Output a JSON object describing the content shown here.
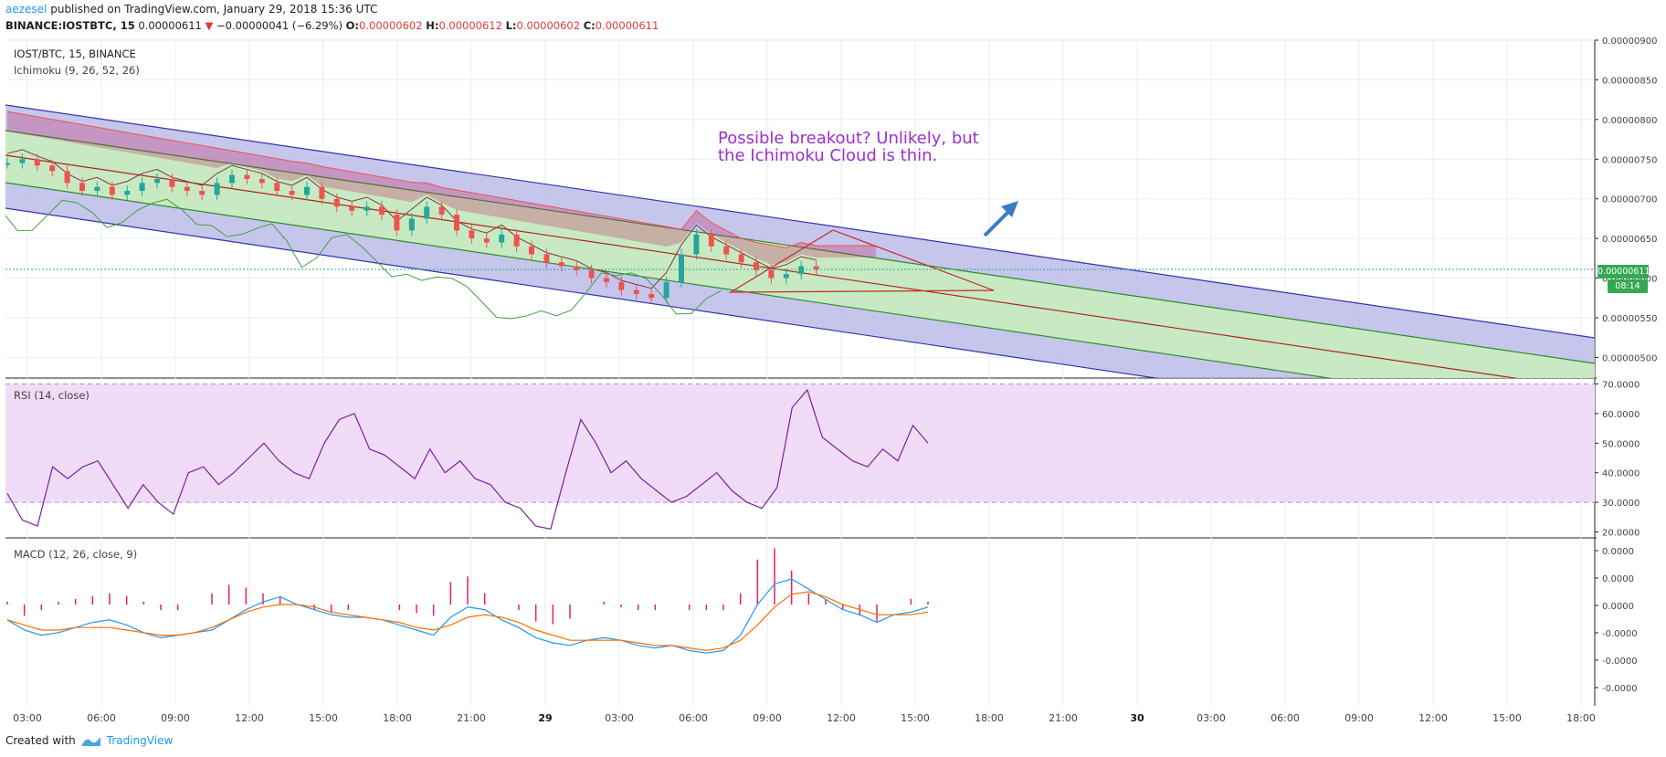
{
  "header": {
    "author": "aezesel",
    "published": "published on TradingView.com, January 29, 2018 15:36 UTC",
    "symbol": "BINANCE:IOSTBTC, 15",
    "last": "0.00000611",
    "change_arrow": "▼",
    "change": "−0.00000041 (−6.29%)",
    "o_label": "O:",
    "o_val": "0.00000602",
    "h_label": "H:",
    "h_val": "0.00000612",
    "l_label": "L:",
    "l_val": "0.00000602",
    "c_label": "C:",
    "c_val": "0.00000611"
  },
  "main_pane": {
    "title": "IOST/BTC, 15, BINANCE",
    "indicator": "Ichimoku (9, 26, 52, 26)",
    "annotation_line1": "Possible breakout? Unlikely, but",
    "annotation_line2": "the Ichimoku Cloud is thin.",
    "price_badge": "0.00000611",
    "time_badge": "08:14"
  },
  "rsi_pane": {
    "title": "RSI (14, close)"
  },
  "macd_pane": {
    "title": "MACD (12, 26, close, 9)"
  },
  "footer": {
    "created_with": "Created with",
    "brand": "TradingView"
  },
  "colors": {
    "up": "#26a69a",
    "down": "#ef5350",
    "cloud": "#c2185b",
    "channel_blue": "#3333aa",
    "channel_fill_blue": "#b3b3e6",
    "channel_fill_green": "#c8ecc0",
    "rsi_line": "#7b1fa2",
    "rsi_band": "#f1dcf8",
    "macd_line": "#2196f3",
    "signal_line": "#ff6d00",
    "hist": "#e91e63"
  },
  "chart_data": [
    {
      "type": "candlestick",
      "title": "IOST/BTC, 15, BINANCE",
      "x_tick_labels": [
        "03:00",
        "06:00",
        "09:00",
        "12:00",
        "15:00",
        "18:00",
        "21:00",
        "29",
        "03:00",
        "06:00",
        "09:00",
        "12:00",
        "15:00",
        "18:00",
        "21:00",
        "30",
        "03:00",
        "06:00",
        "09:00",
        "12:00",
        "15:00",
        "18:00"
      ],
      "y_tick_labels": [
        "0.00000900",
        "0.00000850",
        "0.00000800",
        "0.00000750",
        "0.00000700",
        "0.00000650",
        "0.00000600",
        "0.00000550",
        "0.00000500"
      ],
      "ylim": [
        4.74e-06,
        9e-06
      ],
      "close_series": [
        7.45,
        7.5,
        7.42,
        7.35,
        7.2,
        7.1,
        7.15,
        7.05,
        7.1,
        7.2,
        7.25,
        7.15,
        7.1,
        7.05,
        7.2,
        7.3,
        7.25,
        7.2,
        7.1,
        7.05,
        7.15,
        7.0,
        6.9,
        6.85,
        6.9,
        6.8,
        6.6,
        6.75,
        6.9,
        6.8,
        6.6,
        6.5,
        6.45,
        6.55,
        6.4,
        6.3,
        6.2,
        6.15,
        6.1,
        6.0,
        5.95,
        5.85,
        5.8,
        5.75,
        5.95,
        6.3,
        6.55,
        6.4,
        6.3,
        6.2,
        6.1,
        6.0,
        6.05,
        6.15,
        6.11
      ],
      "last_price": "0.00000611"
    },
    {
      "type": "line",
      "title": "RSI (14, close)",
      "y_tick_labels": [
        "70.0000",
        "60.0000",
        "50.0000",
        "40.0000",
        "30.0000",
        "20.0000"
      ],
      "ylim": [
        18,
        72
      ],
      "band": [
        30,
        70
      ],
      "values": [
        33,
        24,
        22,
        42,
        38,
        42,
        44,
        36,
        28,
        36,
        30,
        26,
        40,
        42,
        36,
        40,
        45,
        50,
        44,
        40,
        38,
        50,
        58,
        60,
        48,
        46,
        42,
        38,
        48,
        40,
        44,
        38,
        36,
        30,
        28,
        22,
        21,
        40,
        58,
        50,
        40,
        44,
        38,
        34,
        30,
        32,
        36,
        40,
        34,
        30,
        28,
        35,
        62,
        68,
        52,
        48,
        44,
        42,
        48,
        44,
        56,
        50
      ]
    },
    {
      "type": "bar+line",
      "title": "MACD (12, 26, close, 9)",
      "y_tick_labels": [
        "0.0000",
        "0.0000",
        "0.0000",
        "-0.0000",
        "-0.0000",
        "-0.0000"
      ],
      "macd_values": [
        -0.6,
        -1.0,
        -1.2,
        -1.1,
        -0.9,
        -0.7,
        -0.6,
        -0.8,
        -1.1,
        -1.3,
        -1.2,
        -1.1,
        -1.0,
        -0.6,
        -0.2,
        0.1,
        0.3,
        0.0,
        -0.2,
        -0.4,
        -0.5,
        -0.5,
        -0.6,
        -0.8,
        -1.0,
        -1.2,
        -0.5,
        -0.1,
        -0.2,
        -0.6,
        -0.9,
        -1.3,
        -1.5,
        -1.6,
        -1.4,
        -1.3,
        -1.4,
        -1.6,
        -1.7,
        -1.6,
        -1.8,
        -1.9,
        -1.8,
        -1.2,
        0.0,
        0.8,
        1.0,
        0.6,
        0.2,
        -0.2,
        -0.4,
        -0.7,
        -0.4,
        -0.3,
        -0.1
      ],
      "signal_values": [
        -0.6,
        -0.8,
        -1.0,
        -1.0,
        -0.9,
        -0.9,
        -0.9,
        -1.0,
        -1.1,
        -1.2,
        -1.2,
        -1.1,
        -0.9,
        -0.6,
        -0.3,
        -0.1,
        0.0,
        0.0,
        -0.1,
        -0.3,
        -0.4,
        -0.5,
        -0.6,
        -0.7,
        -0.9,
        -1.0,
        -0.8,
        -0.5,
        -0.4,
        -0.5,
        -0.7,
        -1.0,
        -1.2,
        -1.4,
        -1.4,
        -1.4,
        -1.4,
        -1.5,
        -1.6,
        -1.6,
        -1.7,
        -1.8,
        -1.7,
        -1.4,
        -0.8,
        -0.1,
        0.4,
        0.5,
        0.3,
        0.0,
        -0.2,
        -0.4,
        -0.4,
        -0.4,
        -0.3
      ],
      "histogram": [
        0.05,
        -0.2,
        -0.1,
        0.05,
        0.1,
        0.15,
        0.2,
        0.15,
        0.05,
        -0.1,
        -0.1,
        0.0,
        0.2,
        0.35,
        0.3,
        0.2,
        0.15,
        0.0,
        -0.1,
        -0.15,
        -0.1,
        0.0,
        0.0,
        -0.1,
        -0.15,
        -0.2,
        0.4,
        0.5,
        0.2,
        0.0,
        -0.1,
        -0.3,
        -0.35,
        -0.25,
        0.0,
        0.05,
        -0.05,
        -0.1,
        -0.1,
        0.0,
        -0.1,
        -0.1,
        -0.1,
        0.2,
        0.8,
        1.0,
        0.6,
        0.2,
        0.1,
        -0.1,
        -0.2,
        -0.3,
        0.0,
        0.1,
        0.05
      ]
    }
  ]
}
